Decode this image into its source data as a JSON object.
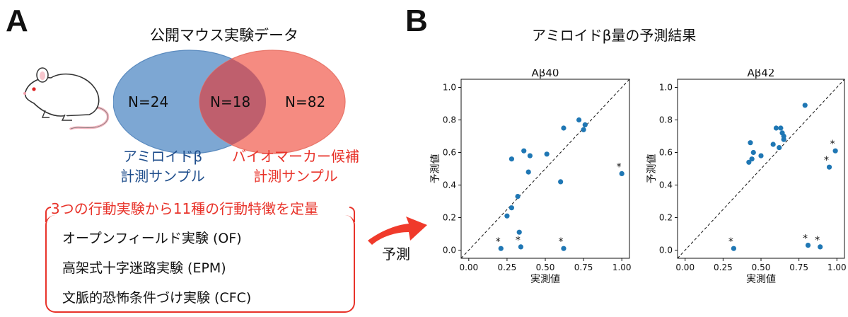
{
  "panel_a": {
    "letter": "A",
    "title": "公開マウス実験データ",
    "venn": {
      "left_count": "N=24",
      "overlap_count": "N=18",
      "right_count": "N=82",
      "left_label_1": "アミロイドβ",
      "left_label_2": "計測サンプル",
      "right_label_1": "バイオマーカー候補",
      "right_label_2": "計測サンプル",
      "left_color": "#7da7d3",
      "right_color": "#f4857a",
      "overlap_color": "#bf5f6d"
    },
    "behavior_heading": "3つの行動実験から11種の行動特徴を定量",
    "experiments": [
      "オープンフィールド実験 (OF)",
      "高架式十字迷路実験 (EPM)",
      "文脈的恐怖条件づけ実験 (CFC)"
    ],
    "arrow_label": "予測",
    "accent_red": "#e8332a",
    "mouse_icon": "mouse-icon"
  },
  "panel_b": {
    "letter": "B",
    "title": "アミロイドβ量の予測結果"
  },
  "chart_data": [
    {
      "type": "scatter",
      "title": "Aβ40",
      "xlabel": "実測値",
      "ylabel": "予測値",
      "xlim": [
        -0.05,
        1.05
      ],
      "ylim": [
        -0.05,
        1.05
      ],
      "xticks": [
        "0.00",
        "0.25",
        "0.50",
        "0.75",
        "1.00"
      ],
      "yticks": [
        "0.0",
        "0.2",
        "0.4",
        "0.6",
        "0.8",
        "1.0"
      ],
      "diagonal": true,
      "point_color": "#1f77b4",
      "marker_label": "*",
      "points": [
        {
          "x": 0.21,
          "y": 0.01,
          "marked": true
        },
        {
          "x": 0.25,
          "y": 0.21,
          "marked": false
        },
        {
          "x": 0.28,
          "y": 0.26,
          "marked": false
        },
        {
          "x": 0.28,
          "y": 0.56,
          "marked": false
        },
        {
          "x": 0.32,
          "y": 0.33,
          "marked": false
        },
        {
          "x": 0.33,
          "y": 0.11,
          "marked": false
        },
        {
          "x": 0.34,
          "y": 0.02,
          "marked": true
        },
        {
          "x": 0.36,
          "y": 0.61,
          "marked": false
        },
        {
          "x": 0.39,
          "y": 0.48,
          "marked": false
        },
        {
          "x": 0.4,
          "y": 0.58,
          "marked": false
        },
        {
          "x": 0.51,
          "y": 0.59,
          "marked": false
        },
        {
          "x": 0.6,
          "y": 0.42,
          "marked": false
        },
        {
          "x": 0.62,
          "y": 0.75,
          "marked": false
        },
        {
          "x": 0.62,
          "y": 0.01,
          "marked": true
        },
        {
          "x": 0.72,
          "y": 0.8,
          "marked": false
        },
        {
          "x": 0.75,
          "y": 0.74,
          "marked": false
        },
        {
          "x": 0.76,
          "y": 0.77,
          "marked": false
        },
        {
          "x": 1.0,
          "y": 0.47,
          "marked": true
        }
      ]
    },
    {
      "type": "scatter",
      "title": "Aβ42",
      "xlabel": "実測値",
      "ylabel": "予測値",
      "xlim": [
        -0.05,
        1.05
      ],
      "ylim": [
        -0.05,
        1.05
      ],
      "xticks": [
        "0.00",
        "0.25",
        "0.50",
        "0.75",
        "1.00"
      ],
      "yticks": [
        "0.0",
        "0.2",
        "0.4",
        "0.6",
        "0.8",
        "1.0"
      ],
      "diagonal": true,
      "point_color": "#1f77b4",
      "marker_label": "*",
      "points": [
        {
          "x": 0.32,
          "y": 0.01,
          "marked": true
        },
        {
          "x": 0.42,
          "y": 0.54,
          "marked": false
        },
        {
          "x": 0.43,
          "y": 0.66,
          "marked": false
        },
        {
          "x": 0.44,
          "y": 0.56,
          "marked": false
        },
        {
          "x": 0.45,
          "y": 0.6,
          "marked": false
        },
        {
          "x": 0.5,
          "y": 0.58,
          "marked": false
        },
        {
          "x": 0.58,
          "y": 0.65,
          "marked": false
        },
        {
          "x": 0.6,
          "y": 0.75,
          "marked": false
        },
        {
          "x": 0.62,
          "y": 0.63,
          "marked": false
        },
        {
          "x": 0.63,
          "y": 0.75,
          "marked": false
        },
        {
          "x": 0.64,
          "y": 0.72,
          "marked": false
        },
        {
          "x": 0.65,
          "y": 0.7,
          "marked": false
        },
        {
          "x": 0.65,
          "y": 0.68,
          "marked": false
        },
        {
          "x": 0.79,
          "y": 0.89,
          "marked": false
        },
        {
          "x": 0.81,
          "y": 0.03,
          "marked": true
        },
        {
          "x": 0.89,
          "y": 0.02,
          "marked": true
        },
        {
          "x": 0.95,
          "y": 0.51,
          "marked": true
        },
        {
          "x": 0.99,
          "y": 0.61,
          "marked": true
        }
      ]
    }
  ]
}
